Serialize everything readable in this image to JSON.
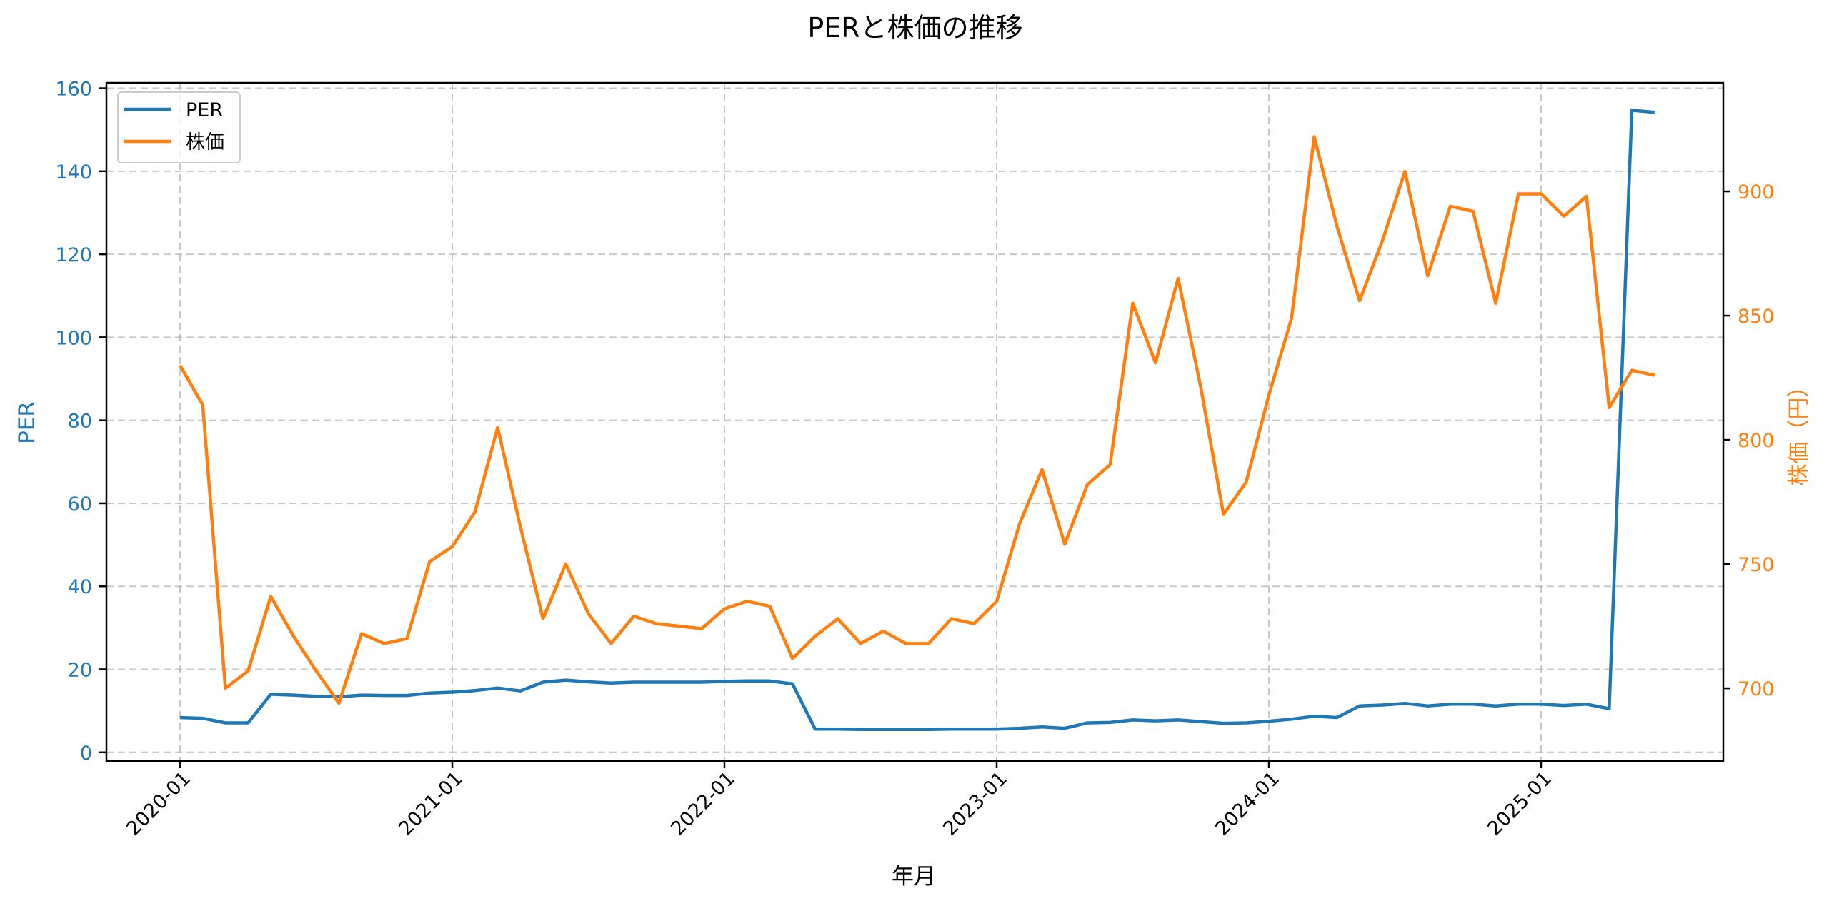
{
  "chart_data": {
    "type": "line",
    "title": "PERと株価の推移",
    "xlabel": "年月",
    "ylabel": "PER",
    "ylabel_right": "株価（円）",
    "x": [
      "2020-01",
      "2020-02",
      "2020-03",
      "2020-04",
      "2020-05",
      "2020-06",
      "2020-07",
      "2020-08",
      "2020-09",
      "2020-10",
      "2020-11",
      "2020-12",
      "2021-01",
      "2021-02",
      "2021-03",
      "2021-04",
      "2021-05",
      "2021-06",
      "2021-07",
      "2021-08",
      "2021-09",
      "2021-10",
      "2021-11",
      "2021-12",
      "2022-01",
      "2022-02",
      "2022-03",
      "2022-04",
      "2022-05",
      "2022-06",
      "2022-07",
      "2022-08",
      "2022-09",
      "2022-10",
      "2022-11",
      "2022-12",
      "2023-01",
      "2023-02",
      "2023-03",
      "2023-04",
      "2023-05",
      "2023-06",
      "2023-07",
      "2023-08",
      "2023-09",
      "2023-10",
      "2023-11",
      "2023-12",
      "2024-01",
      "2024-02",
      "2024-03",
      "2024-04",
      "2024-05",
      "2024-06",
      "2024-07",
      "2024-08",
      "2024-09",
      "2024-10",
      "2024-11",
      "2024-12",
      "2025-01",
      "2025-02",
      "2025-03",
      "2025-04",
      "2025-05",
      "2025-06"
    ],
    "series": [
      {
        "name": "PER",
        "axis": "left",
        "color": "#1f77b4",
        "values": [
          8.4,
          8.2,
          7.1,
          7.1,
          14.0,
          13.8,
          13.5,
          13.4,
          13.8,
          13.7,
          13.7,
          14.3,
          14.5,
          14.9,
          15.5,
          14.8,
          16.9,
          17.4,
          17.0,
          16.7,
          16.9,
          16.9,
          16.9,
          16.9,
          17.1,
          17.2,
          17.2,
          16.5,
          5.6,
          5.6,
          5.5,
          5.5,
          5.5,
          5.5,
          5.6,
          5.6,
          5.6,
          5.8,
          6.1,
          5.8,
          7.1,
          7.2,
          7.8,
          7.6,
          7.8,
          7.4,
          7.0,
          7.1,
          7.5,
          8.0,
          8.7,
          8.4,
          11.2,
          11.4,
          11.8,
          11.2,
          11.6,
          11.6,
          11.2,
          11.6,
          11.6,
          11.3,
          11.6,
          10.5,
          154.7,
          154.2
        ]
      },
      {
        "name": "株価",
        "axis": "right",
        "color": "#ff7f0e",
        "values": [
          830,
          814,
          700,
          707,
          737,
          721,
          707,
          694,
          722,
          718,
          720,
          751,
          757,
          771,
          805,
          765,
          728,
          750,
          730,
          718,
          729,
          726,
          725,
          724,
          732,
          735,
          733,
          712,
          721,
          728,
          718,
          723,
          718,
          718,
          728,
          726,
          735,
          766,
          788,
          758,
          782,
          790,
          855,
          831,
          865,
          821,
          770,
          783,
          818,
          849,
          922,
          886,
          856,
          880,
          908,
          866,
          894,
          892,
          855,
          899,
          899,
          890,
          898,
          813,
          828,
          826
        ]
      }
    ],
    "xticks": [
      "2020-01",
      "2021-01",
      "2022-01",
      "2023-01",
      "2024-01",
      "2025-01"
    ],
    "yticks_left": [
      0,
      20,
      40,
      60,
      80,
      100,
      120,
      140,
      160
    ],
    "yticks_right": [
      700,
      750,
      800,
      850,
      900
    ],
    "ylim": [
      -2.1,
      161.3
    ],
    "ylim_right": [
      670.7,
      943.7
    ],
    "grid": true,
    "legend_position": "upper left"
  }
}
